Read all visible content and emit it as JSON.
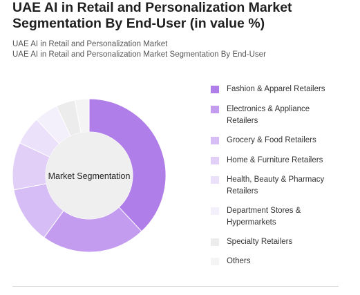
{
  "header": {
    "title": "UAE AI in Retail and Personalization Market Segmentation By End-User (in value %)",
    "subtitle_1": "UAE AI in Retail and Personalization Market",
    "subtitle_2": "UAE AI in Retail and Personalization Market Segmentation By End-User"
  },
  "chart_data": {
    "type": "pie",
    "center_label": "Market Segmentation",
    "legend_position": "right",
    "categories": [
      "Fashion & Apparel Retailers",
      "Electronics & Appliance Retailers",
      "Grocery & Food Retailers",
      "Home & Furniture Retailers",
      "Health, Beauty & Pharmacy Retailers",
      "Department Stores & Hypermarkets",
      "Specialty Retailers",
      "Others"
    ],
    "values": [
      38,
      22,
      12,
      10,
      6,
      5,
      4,
      3
    ],
    "colors": [
      "#b07ee8",
      "#c39cf0",
      "#d6bdf5",
      "#e2cff8",
      "#ece1fa",
      "#f3effb",
      "#ececec",
      "#f4f4f4"
    ]
  }
}
